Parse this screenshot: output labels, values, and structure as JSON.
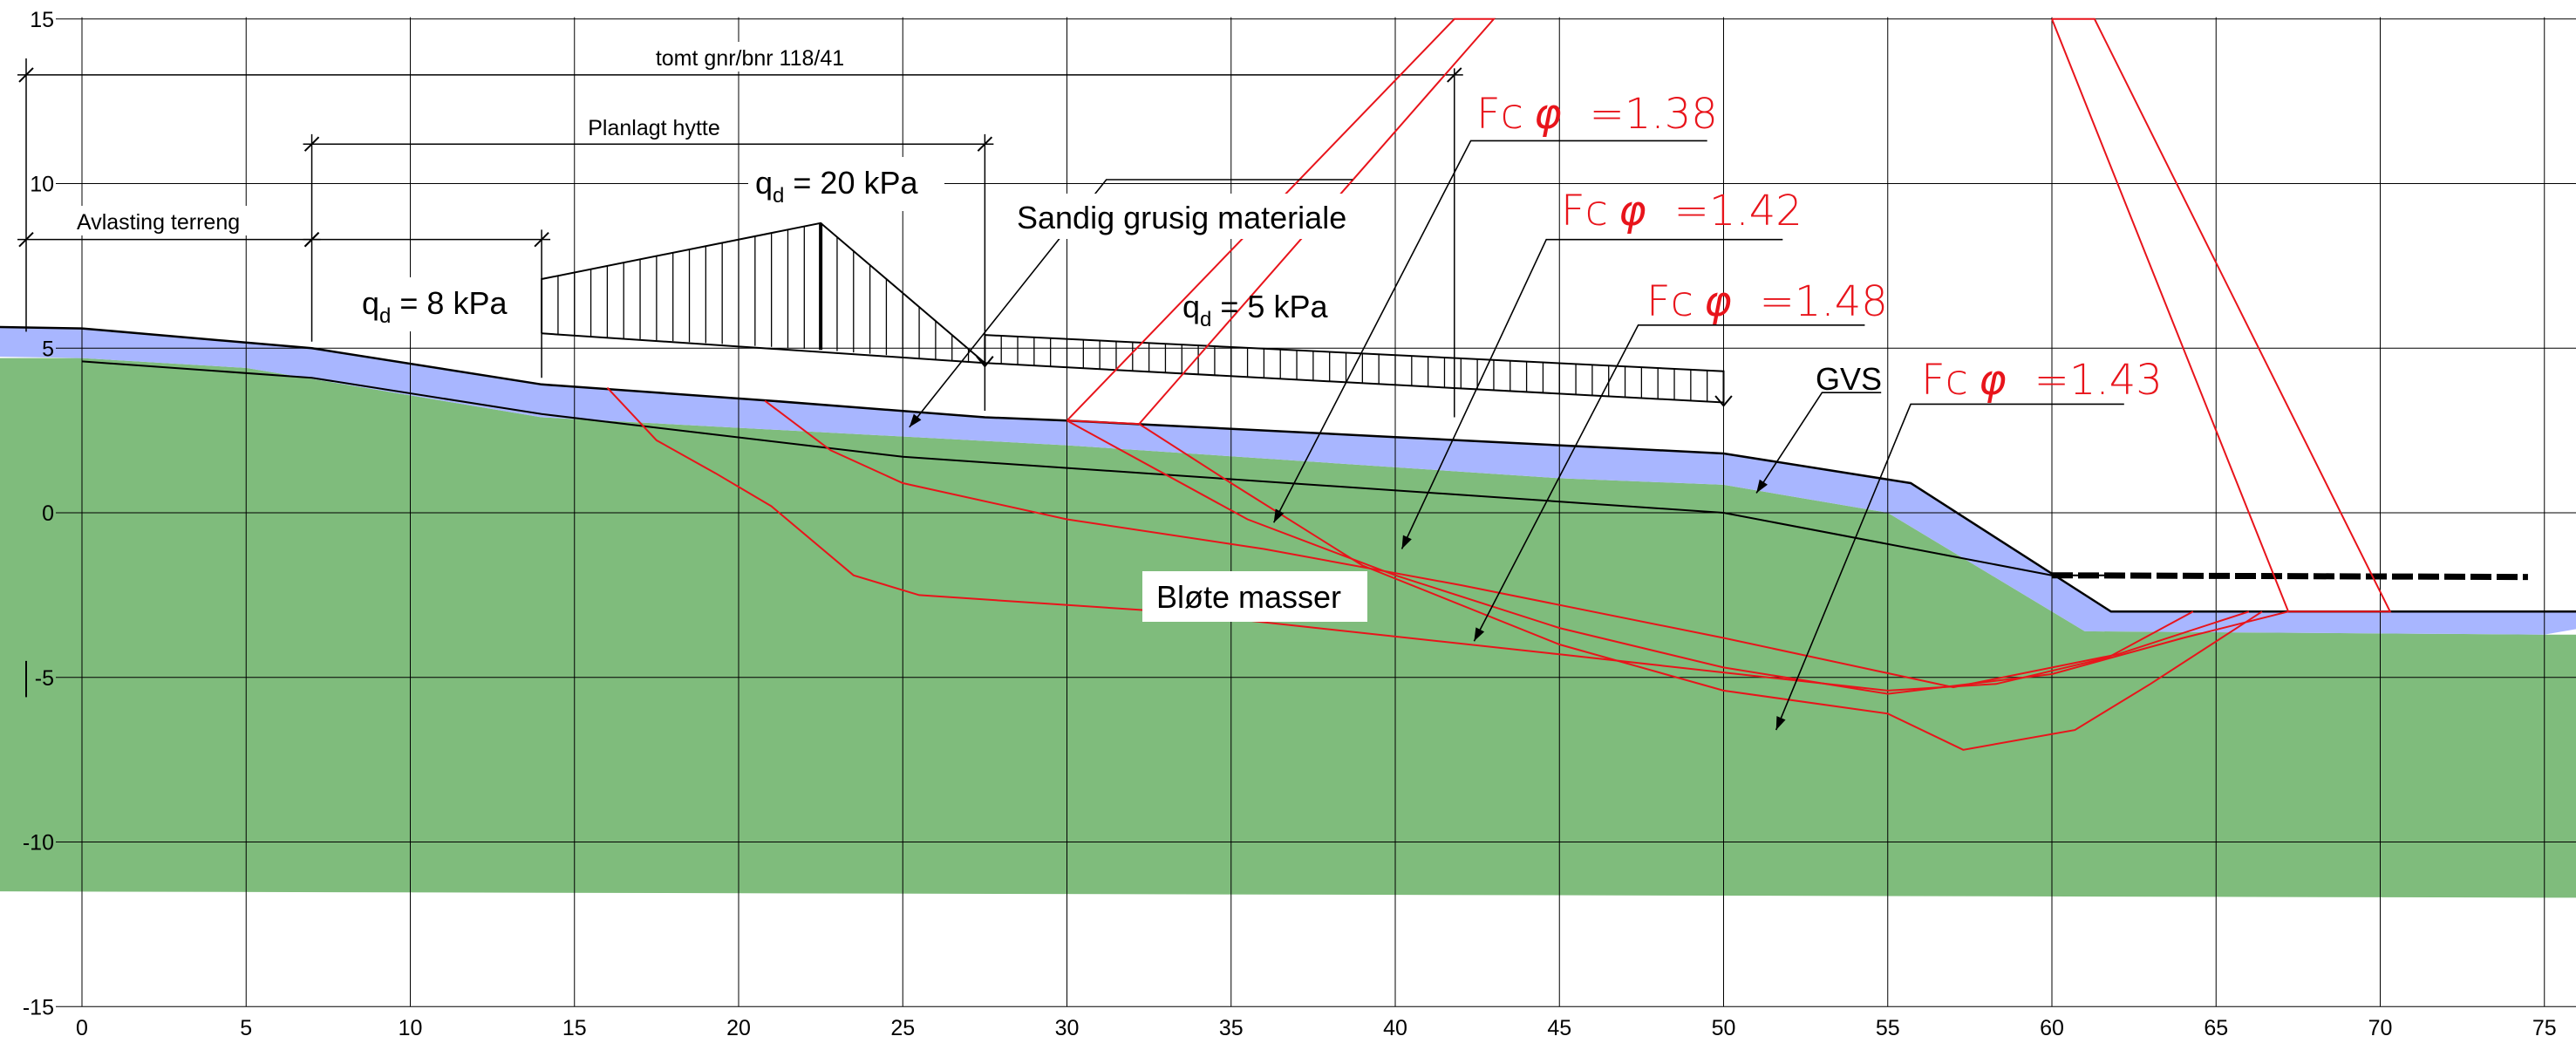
{
  "chart_data": {
    "type": "cross-section",
    "x_ticks": [
      0,
      5,
      10,
      15,
      20,
      25,
      30,
      35,
      40,
      45,
      50,
      55,
      60,
      65,
      70,
      75
    ],
    "y_ticks": [
      15,
      10,
      5,
      0,
      -5,
      -10,
      -15
    ],
    "xlim": [
      0,
      75
    ],
    "ylim": [
      -15,
      15
    ],
    "grid": true,
    "dimensions": {
      "plot": "tomt gnr/bnr 118/41",
      "cabin": "Planlagt hytte",
      "unloading": "Avlasting terreng"
    },
    "loads": [
      {
        "label": "q",
        "sub": "d",
        "rest": " = 8 kPa",
        "value_kpa": 8,
        "from_x": 14,
        "to_x": 22.5,
        "shape": "trapezoid"
      },
      {
        "label": "q",
        "sub": "d",
        "rest": " = 20 kPa",
        "value_kpa": 20,
        "from_x": 14,
        "to_x": 27.5,
        "shape": "peak at 22.5"
      },
      {
        "label": "q",
        "sub": "d",
        "rest": " = 5 kPa",
        "value_kpa": 5,
        "from_x": 27.5,
        "to_x": 50,
        "shape": "uniform"
      }
    ],
    "layers": {
      "fill": "Sandig grusig materiale",
      "soft": "Bløte masser",
      "groundwater": "GVS"
    },
    "colors": {
      "fill_layer": "#a8b6ff",
      "soft_layer": "#7fbc7c",
      "slip_surface": "#e8141b"
    },
    "surface_profile": [
      [
        0,
        5.6
      ],
      [
        7,
        5
      ],
      [
        14,
        3.9
      ],
      [
        21,
        3.4
      ],
      [
        27.5,
        2.9
      ],
      [
        30,
        2.8
      ],
      [
        40,
        2.3
      ],
      [
        50,
        1.8
      ],
      [
        55.7,
        0.9
      ],
      [
        61.8,
        -3
      ],
      [
        75,
        -3
      ]
    ],
    "fill_base_profile": [
      [
        0,
        4.7
      ],
      [
        5,
        4.4
      ],
      [
        14,
        2.9
      ],
      [
        30,
        2.05
      ],
      [
        45,
        1.05
      ],
      [
        50,
        0.85
      ],
      [
        55,
        0.0
      ],
      [
        61,
        -3.6
      ],
      [
        75,
        -3.7
      ]
    ],
    "soft_base": [
      [
        0,
        -11.5
      ],
      [
        75,
        -11.7
      ]
    ],
    "groundwater_line": [
      [
        0,
        4.6
      ],
      [
        7,
        4.1
      ],
      [
        14,
        3.0
      ],
      [
        25,
        1.7
      ],
      [
        50,
        0.0
      ],
      [
        60,
        -1.9
      ],
      [
        61.8,
        -1.9
      ]
    ],
    "water_level_dashed": [
      [
        60,
        -1.9
      ],
      [
        74.5,
        -1.95
      ]
    ],
    "safety_factors": [
      {
        "label": "Fc",
        "phi": "φ",
        "value": "=1.38",
        "fs": 1.38
      },
      {
        "label": "Fc",
        "phi": "φ",
        "value": "=1.42",
        "fs": 1.42
      },
      {
        "label": "Fc",
        "phi": "φ",
        "value": "=1.48",
        "fs": 1.48
      },
      {
        "label": "Fc",
        "phi": "φ",
        "value": "=1.43",
        "fs": 1.43
      }
    ],
    "slip_surfaces": [
      [
        [
          16,
          3.8
        ],
        [
          17.5,
          2.2
        ],
        [
          19.3,
          1.2
        ],
        [
          21,
          0.2
        ],
        [
          23.5,
          -1.9
        ],
        [
          25.5,
          -2.5
        ],
        [
          33,
          -3
        ],
        [
          45,
          -4.3
        ],
        [
          55,
          -5.4
        ],
        [
          58.3,
          -5.2
        ],
        [
          61.7,
          -4.4
        ],
        [
          64.3,
          -3
        ]
      ],
      [
        [
          20.8,
          3.4
        ],
        [
          22.8,
          1.9
        ],
        [
          25,
          0.9
        ],
        [
          30,
          -0.2
        ],
        [
          36,
          -1.1
        ],
        [
          42,
          -2.2
        ],
        [
          50,
          -3.8
        ],
        [
          57,
          -5.3
        ],
        [
          62,
          -4.3
        ],
        [
          66,
          -3
        ]
      ],
      [
        [
          30,
          2.8
        ],
        [
          35.5,
          -0.2
        ],
        [
          40,
          -1.9
        ],
        [
          45,
          -3.5
        ],
        [
          50,
          -4.7
        ],
        [
          55,
          -5.5
        ],
        [
          60,
          -4.9
        ],
        [
          64,
          -3.8
        ],
        [
          67.2,
          -3
        ]
      ],
      [
        [
          32.2,
          2.7
        ],
        [
          35,
          0.9
        ],
        [
          39,
          -1.6
        ],
        [
          45,
          -4
        ],
        [
          50,
          -5.4
        ],
        [
          55,
          -6.1
        ],
        [
          57.3,
          -7.2
        ],
        [
          60.7,
          -6.6
        ],
        [
          63,
          -5.2
        ],
        [
          66.4,
          -3
        ]
      ]
    ],
    "slip_polygons": [
      [
        [
          30,
          2.8
        ],
        [
          41.8,
          15
        ],
        [
          43,
          15
        ],
        [
          32.2,
          2.7
        ],
        [
          30,
          2.8
        ]
      ],
      [
        [
          60,
          15
        ],
        [
          61.3,
          15
        ],
        [
          70.3,
          -3
        ],
        [
          67.2,
          -3
        ],
        [
          60,
          15
        ]
      ]
    ]
  }
}
